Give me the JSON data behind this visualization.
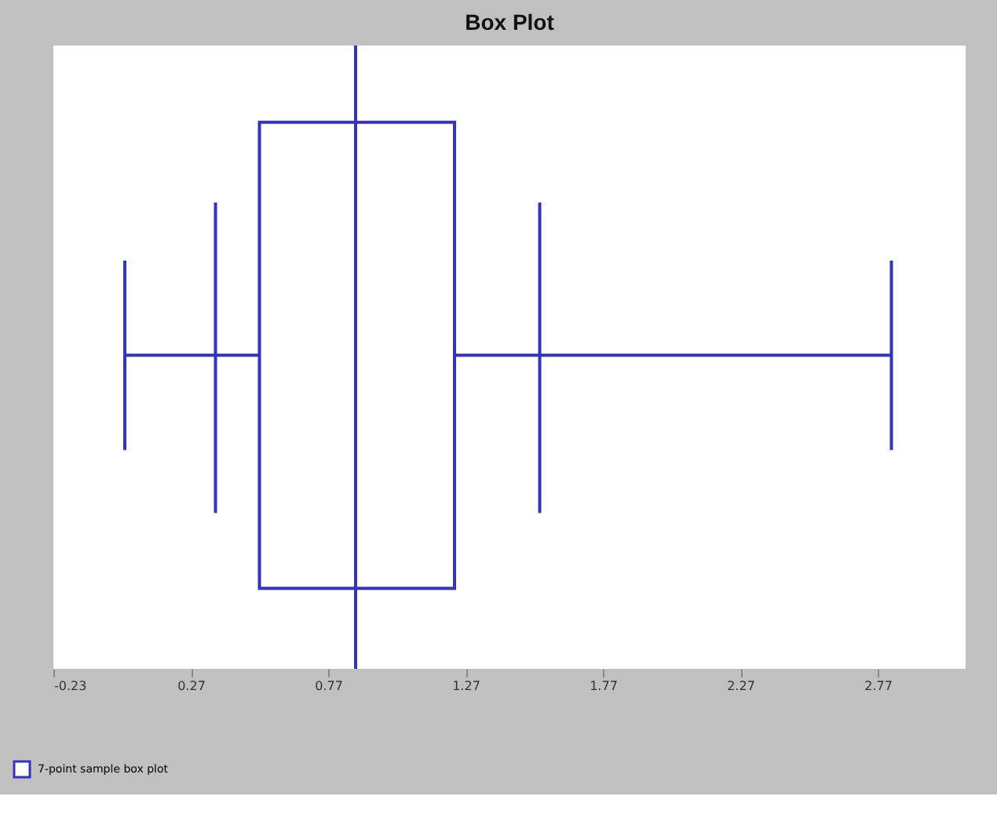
{
  "chart_data": {
    "type": "box",
    "title": "Box Plot",
    "orientation": "horizontal",
    "categories": [
      null
    ],
    "series": [
      {
        "name": "7-point sample box plot",
        "color": "#3333bb",
        "boxes": [
          {
            "low": 0.03,
            "q1": 0.52,
            "median": 0.87,
            "q3": 1.23,
            "high": 2.82
          }
        ]
      }
    ],
    "ref_lines": [
      {
        "axis": "x",
        "value": 0.36
      },
      {
        "axis": "x",
        "value": 1.54
      },
      {
        "axis": "x",
        "value": 0.87
      }
    ],
    "xlim": [
      -0.23,
      3.09
    ],
    "xticks": [
      -0.23,
      0.27,
      0.77,
      1.27,
      1.77,
      2.27,
      2.77
    ],
    "grid": false,
    "legend": "bottom left",
    "tick_labels": "x"
  }
}
